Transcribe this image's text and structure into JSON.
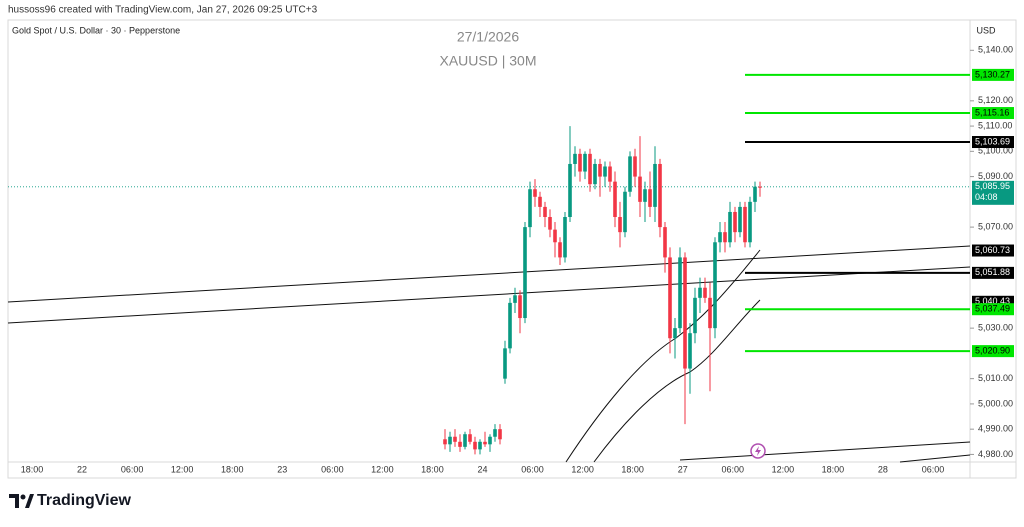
{
  "chart_data": {
    "type": "candlestick",
    "header": "hussoss96 created with TradingView.com, Jan 27, 2026 09:25 UTC+3",
    "symbol": "Gold Spot / U.S. Dollar · 30 · Pepperstone",
    "title": "27/1/2026",
    "subtitle": "XAUUSD | 30M",
    "currency": "USD",
    "brand": "TradingView",
    "up_color": "#089981",
    "down_color": "#f23645",
    "ylim": [
      4977,
      5152
    ],
    "yticks": [
      {
        "value": 5140,
        "label": "5,140.00"
      },
      {
        "value": 5120,
        "label": "5,120.00"
      },
      {
        "value": 5110,
        "label": "5,110.00"
      },
      {
        "value": 5100,
        "label": "5,100.00"
      },
      {
        "value": 5090,
        "label": "5,090.00"
      },
      {
        "value": 5070,
        "label": "5,070.00"
      },
      {
        "value": 5030,
        "label": "5,030.00"
      },
      {
        "value": 5010,
        "label": "5,010.00"
      },
      {
        "value": 5000,
        "label": "5,000.00"
      },
      {
        "value": 4990,
        "label": "4,990.00"
      },
      {
        "value": 4980,
        "label": "4,980.00"
      }
    ],
    "xticks": [
      "18:00",
      "22",
      "06:00",
      "12:00",
      "18:00",
      "23",
      "06:00",
      "12:00",
      "18:00",
      "24",
      "06:00",
      "12:00",
      "18:00",
      "27",
      "06:00",
      "12:00",
      "18:00",
      "28",
      "06:00"
    ],
    "open": [
      4986,
      4984,
      4987,
      4985,
      4983,
      4988,
      4985,
      4982,
      4985,
      4984,
      4987,
      4990,
      5010,
      5022,
      5040,
      5043,
      5034,
      5070,
      5085,
      5082,
      5078,
      5074,
      5069,
      5064,
      5058,
      5074,
      5095,
      5099,
      5092,
      5099,
      5087,
      5095,
      5090,
      5094,
      5088,
      5074,
      5068,
      5084,
      5098,
      5090,
      5080,
      5085,
      5078,
      5095,
      5070,
      5058,
      5026,
      5030,
      5058,
      5014,
      5028,
      5042,
      5046,
      5042,
      5030,
      5064,
      5068,
      5064,
      5076,
      5068,
      5078,
      5064,
      5080,
      5086
    ],
    "high": [
      4990,
      4989,
      4990,
      4988,
      4989,
      4990,
      4987,
      4986,
      4989,
      4988,
      4992,
      4992,
      5025,
      5042,
      5046,
      5045,
      5072,
      5088,
      5089,
      5084,
      5080,
      5077,
      5072,
      5066,
      5076,
      5110,
      5102,
      5101,
      5100,
      5101,
      5097,
      5097,
      5096,
      5096,
      5092,
      5080,
      5086,
      5100,
      5101,
      5106,
      5088,
      5092,
      5102,
      5097,
      5072,
      5062,
      5034,
      5062,
      5060,
      5032,
      5046,
      5050,
      5050,
      5048,
      5066,
      5072,
      5072,
      5080,
      5078,
      5080,
      5080,
      5082,
      5088,
      5088
    ],
    "low": [
      4982,
      4981,
      4983,
      4981,
      4982,
      4984,
      4980,
      4980,
      4983,
      4981,
      4985,
      4984,
      5008,
      5020,
      5036,
      5028,
      5032,
      5066,
      5078,
      5074,
      5070,
      5066,
      5058,
      5055,
      5056,
      5072,
      5090,
      5088,
      5089,
      5084,
      5085,
      5082,
      5086,
      5084,
      5070,
      5062,
      5066,
      5082,
      5086,
      5074,
      5072,
      5074,
      5072,
      5066,
      5052,
      5020,
      5018,
      5028,
      4992,
      5004,
      5024,
      5036,
      5040,
      5005,
      5026,
      5060,
      5060,
      5062,
      5064,
      5066,
      5062,
      5062,
      5076,
      5082
    ],
    "close": [
      4984,
      4987,
      4985,
      4983,
      4988,
      4985,
      4982,
      4985,
      4984,
      4987,
      4990,
      4986,
      5022,
      5040,
      5043,
      5034,
      5070,
      5085,
      5082,
      5078,
      5074,
      5069,
      5064,
      5058,
      5074,
      5095,
      5099,
      5092,
      5099,
      5087,
      5095,
      5090,
      5094,
      5088,
      5074,
      5068,
      5084,
      5098,
      5090,
      5080,
      5085,
      5078,
      5095,
      5070,
      5058,
      5026,
      5030,
      5058,
      5014,
      5028,
      5042,
      5046,
      5042,
      5030,
      5064,
      5068,
      5064,
      5076,
      5068,
      5078,
      5064,
      5080,
      5086,
      5085.95
    ],
    "levels": [
      {
        "value": 5130.27,
        "label": "5,130.27",
        "color": "#00e600",
        "label_color": "#000000",
        "line": true
      },
      {
        "value": 5115.16,
        "label": "5,115.16",
        "color": "#00e600",
        "label_color": "#000000",
        "line": true
      },
      {
        "value": 5103.69,
        "label": "5,103.69",
        "color": "#000000",
        "label_color": "#ffffff",
        "line": true
      },
      {
        "value": 5060.73,
        "label": "5,060.73",
        "color": "#000000",
        "label_color": "#ffffff",
        "line": false
      },
      {
        "value": 5051.88,
        "label": "5,051.88",
        "color": "#000000",
        "label_color": "#ffffff",
        "line": true
      },
      {
        "value": 5040.43,
        "label": "5,040.43",
        "color": "#000000",
        "label_color": "#ffffff",
        "line": false
      },
      {
        "value": 5037.49,
        "label": "5,037.49",
        "color": "#00e600",
        "label_color": "#000000",
        "line": true
      },
      {
        "value": 5020.9,
        "label": "5,020.90",
        "color": "#00e600",
        "label_color": "#000000",
        "line": true
      }
    ],
    "last_price": {
      "value": 5085.95,
      "label": "5,085.95",
      "countdown": "04:08",
      "color": "#089981"
    }
  }
}
